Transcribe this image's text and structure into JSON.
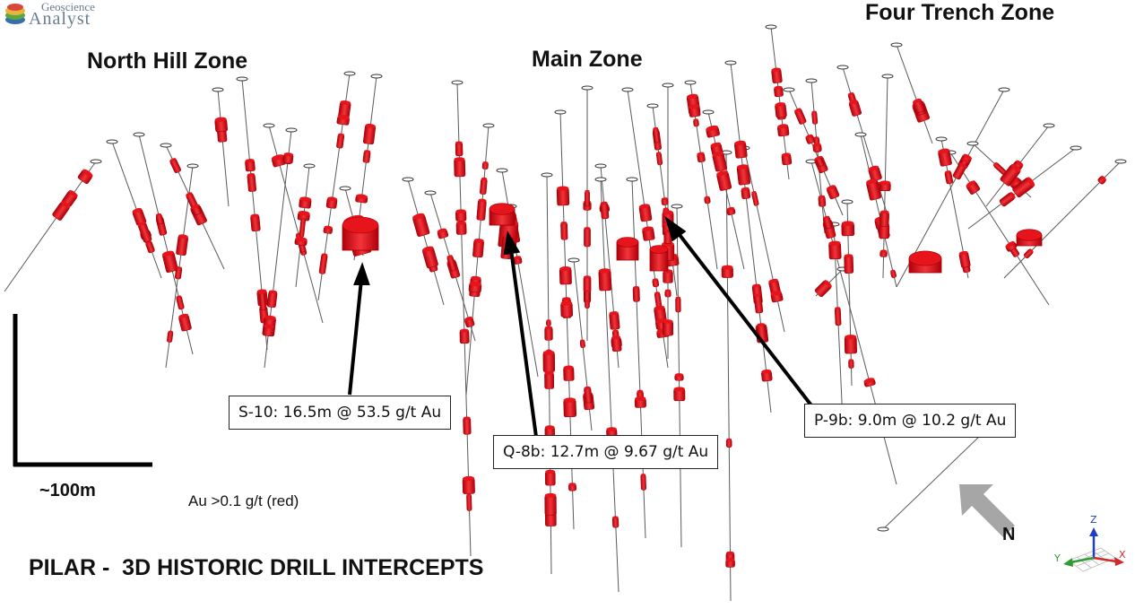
{
  "logo": {
    "top_text": "Geoscience",
    "main_text": "Analyst"
  },
  "zones": {
    "north_hill": "North Hill Zone",
    "main": "Main Zone",
    "four_trench": "Four Trench Zone"
  },
  "callouts": {
    "s10": "S-10: 16.5m @ 53.5 g/t Au",
    "q8b": "Q-8b: 12.7m @ 9.67 g/t Au",
    "p9b": "P-9b: 9.0m @ 10.2 g/t Au"
  },
  "scale_bar_label": "~100m",
  "legend_text": "Au >0.1 g/t (red)",
  "title": "PILAR -  3D HISTORIC DRILL INTERCEPTS",
  "north_label": "N",
  "axes": {
    "z": "Z",
    "y": "Y",
    "x": "X"
  },
  "colors": {
    "intercept": "#e8141c",
    "intercept_dark": "#a00008",
    "drill_trace": "#555555",
    "north_arrow": "#a6a6a6",
    "z_axis": "#1f3fbf",
    "y_axis": "#2f9d2f",
    "x_axis": "#d22a2a"
  }
}
